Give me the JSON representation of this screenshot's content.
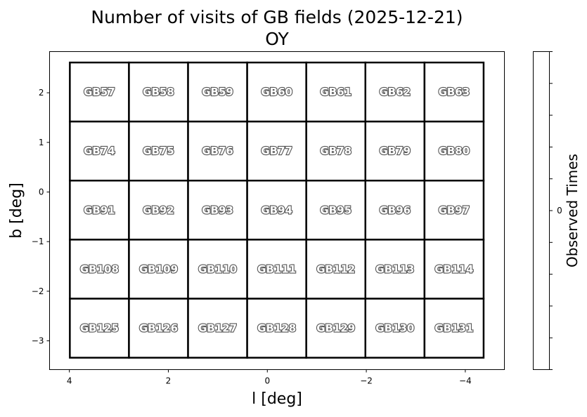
{
  "chart_data": {
    "type": "heatmap",
    "title": "Number of visits of GB fields (2025-12-21)",
    "subtitle": "OY",
    "xlabel": "l [deg]",
    "ylabel": "b [deg]",
    "xlim": [
      4.4,
      -4.79
    ],
    "ylim": [
      -3.58,
      2.83
    ],
    "x_ticks": [
      4,
      2,
      0,
      -2,
      -4
    ],
    "x_tick_labels": [
      "4",
      "2",
      "0",
      "−2",
      "−4"
    ],
    "y_ticks": [
      2,
      1,
      0,
      -1,
      -2,
      -3
    ],
    "y_tick_labels": [
      "2",
      "1",
      "0",
      "−1",
      "−2",
      "−3"
    ],
    "grid_extent": {
      "l": [
        3.99,
        -4.37
      ],
      "b": [
        -3.34,
        2.61
      ]
    },
    "fields": [
      [
        "GB57",
        "GB58",
        "GB59",
        "GB60",
        "GB61",
        "GB62",
        "GB63"
      ],
      [
        "GB74",
        "GB75",
        "GB76",
        "GB77",
        "GB78",
        "GB79",
        "GB80"
      ],
      [
        "GB91",
        "GB92",
        "GB93",
        "GB94",
        "GB95",
        "GB96",
        "GB97"
      ],
      [
        "GB108",
        "GB109",
        "GB110",
        "GB111",
        "GB112",
        "GB113",
        "GB114"
      ],
      [
        "GB125",
        "GB126",
        "GB127",
        "GB128",
        "GB129",
        "GB130",
        "GB131"
      ]
    ],
    "visits": 0,
    "colorbar": {
      "label": "Observed Times",
      "tick_labels": [
        "0"
      ],
      "tick_count": 11
    },
    "grid": false
  }
}
